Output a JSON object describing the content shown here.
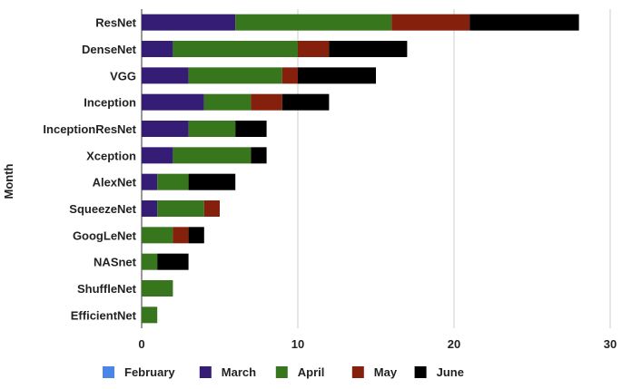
{
  "chart_data": {
    "type": "bar",
    "orientation": "horizontal",
    "stacked": true,
    "title": "",
    "xlabel": "",
    "ylabel": "Month",
    "xlim": [
      0,
      30
    ],
    "x_ticks": [
      0,
      10,
      20,
      30
    ],
    "grid": "vertical",
    "legend_position": "bottom",
    "categories": [
      "ResNet",
      "DenseNet",
      "VGG",
      "Inception",
      "InceptionResNet",
      "Xception",
      "AlexNet",
      "SqueezeNet",
      "GoogLeNet",
      "NASnet",
      "ShuffleNet",
      "EfficientNet"
    ],
    "series": [
      {
        "name": "February",
        "color": "#4a86e8",
        "values": [
          0,
          0,
          0,
          0,
          0,
          0,
          0,
          0,
          0,
          0,
          0,
          0
        ]
      },
      {
        "name": "March",
        "color": "#351c75",
        "values": [
          6,
          2,
          3,
          4,
          3,
          2,
          1,
          1,
          0,
          0,
          0,
          0
        ]
      },
      {
        "name": "April",
        "color": "#38761d",
        "values": [
          10,
          8,
          6,
          3,
          3,
          5,
          2,
          3,
          2,
          1,
          2,
          1
        ]
      },
      {
        "name": "May",
        "color": "#85200c",
        "values": [
          5,
          2,
          1,
          2,
          0,
          0,
          0,
          1,
          1,
          0,
          0,
          0
        ]
      },
      {
        "name": "June",
        "color": "#000000",
        "values": [
          7,
          5,
          5,
          3,
          2,
          1,
          3,
          0,
          1,
          2,
          0,
          0
        ]
      }
    ]
  }
}
